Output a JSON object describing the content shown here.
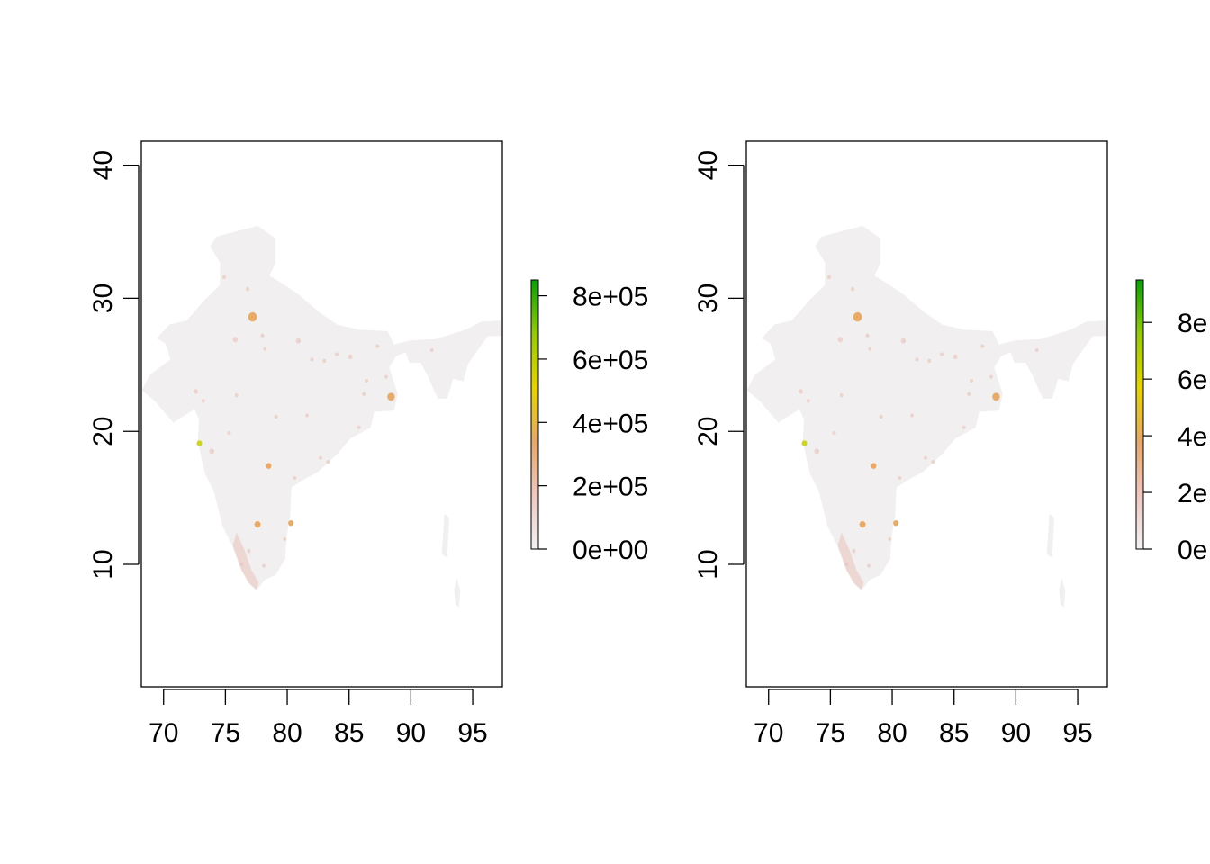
{
  "colors": {
    "land": "#f1efef",
    "ramp": [
      "#f2f2f2",
      "#eec7c0",
      "#e6a869",
      "#e4d404",
      "#97c90b",
      "#08a003"
    ],
    "hotspot_low": "#e9c7c0",
    "hotspot_mid": "#e5a25a",
    "hotspot_high": "#c8d20a",
    "axis": "#000000"
  },
  "chart_data": [
    {
      "type": "heatmap",
      "x_ticks": [
        "70",
        "75",
        "80",
        "85",
        "90",
        "95"
      ],
      "y_ticks": [
        "10",
        "20",
        "30",
        "40"
      ],
      "xlim": [
        68.2,
        97.4
      ],
      "ylim": [
        0.8,
        41.8
      ],
      "legend": {
        "labels": [
          "0e+00",
          "2e+05",
          "4e+05",
          "6e+05",
          "8e+05"
        ],
        "min": 0,
        "max": 850000
      }
    },
    {
      "type": "heatmap",
      "x_ticks": [
        "70",
        "75",
        "80",
        "85",
        "90",
        "95"
      ],
      "y_ticks": [
        "10",
        "20",
        "30",
        "40"
      ],
      "xlim": [
        68.2,
        97.4
      ],
      "ylim": [
        0.8,
        41.8
      ],
      "legend": {
        "labels": [
          "0e",
          "2e",
          "4e",
          "6e",
          "8e"
        ],
        "min": 0,
        "max": 950000
      }
    }
  ]
}
